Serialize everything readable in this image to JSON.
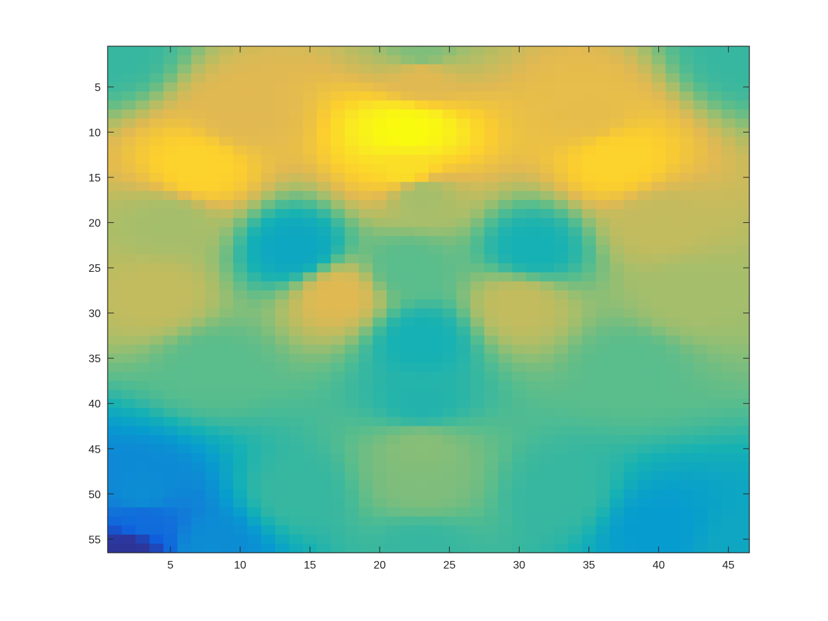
{
  "chart_data": {
    "type": "heatmap",
    "title": "",
    "xlabel": "",
    "ylabel": "",
    "colormap": "parula",
    "grid": false,
    "legend": "none",
    "n_cols": 46,
    "n_rows": 56,
    "xlim": [
      0.5,
      46.5
    ],
    "ylim": [
      0.5,
      56.5
    ],
    "y_reversed": true,
    "color_range": [
      0,
      1
    ],
    "x_ticks": [
      5,
      10,
      15,
      20,
      25,
      30,
      35,
      40,
      45
    ],
    "x_tick_labels": [
      "5",
      "10",
      "15",
      "20",
      "25",
      "30",
      "35",
      "40",
      "45"
    ],
    "y_ticks": [
      5,
      10,
      15,
      20,
      25,
      30,
      35,
      40,
      45,
      50,
      55
    ],
    "y_tick_labels": [
      "5",
      "10",
      "15",
      "20",
      "25",
      "30",
      "35",
      "40",
      "45",
      "50",
      "55"
    ],
    "values_note": "mean-face intensity image",
    "anchors": [
      {
        "x": 1,
        "y": 1,
        "v": 0.45
      },
      {
        "x": 23,
        "y": 1,
        "v": 0.55
      },
      {
        "x": 46,
        "y": 1,
        "v": 0.45
      },
      {
        "x": 23,
        "y": 4,
        "v": 0.7
      },
      {
        "x": 10,
        "y": 8,
        "v": 0.7
      },
      {
        "x": 22,
        "y": 10,
        "v": 1.0
      },
      {
        "x": 35,
        "y": 8,
        "v": 0.72
      },
      {
        "x": 7,
        "y": 14,
        "v": 0.82
      },
      {
        "x": 22,
        "y": 14,
        "v": 0.86
      },
      {
        "x": 37,
        "y": 13,
        "v": 0.82
      },
      {
        "x": 23,
        "y": 17,
        "v": 0.6
      },
      {
        "x": 5,
        "y": 20,
        "v": 0.6
      },
      {
        "x": 40,
        "y": 20,
        "v": 0.65
      },
      {
        "x": 14,
        "y": 23,
        "v": 0.35
      },
      {
        "x": 31,
        "y": 23,
        "v": 0.4
      },
      {
        "x": 22,
        "y": 25,
        "v": 0.5
      },
      {
        "x": 4,
        "y": 28,
        "v": 0.65
      },
      {
        "x": 17,
        "y": 28,
        "v": 0.7
      },
      {
        "x": 30,
        "y": 29,
        "v": 0.65
      },
      {
        "x": 42,
        "y": 28,
        "v": 0.6
      },
      {
        "x": 23,
        "y": 33,
        "v": 0.4
      },
      {
        "x": 8,
        "y": 36,
        "v": 0.5
      },
      {
        "x": 38,
        "y": 36,
        "v": 0.5
      },
      {
        "x": 23,
        "y": 40,
        "v": 0.42
      },
      {
        "x": 23,
        "y": 45,
        "v": 0.56
      },
      {
        "x": 23,
        "y": 49,
        "v": 0.55
      },
      {
        "x": 14,
        "y": 50,
        "v": 0.45
      },
      {
        "x": 33,
        "y": 50,
        "v": 0.45
      },
      {
        "x": 3,
        "y": 50,
        "v": 0.25
      },
      {
        "x": 3,
        "y": 53,
        "v": 0.15
      },
      {
        "x": 2,
        "y": 56,
        "v": 0.02
      },
      {
        "x": 8,
        "y": 56,
        "v": 0.25
      },
      {
        "x": 23,
        "y": 56,
        "v": 0.45
      },
      {
        "x": 40,
        "y": 54,
        "v": 0.3
      },
      {
        "x": 46,
        "y": 56,
        "v": 0.35
      }
    ]
  }
}
